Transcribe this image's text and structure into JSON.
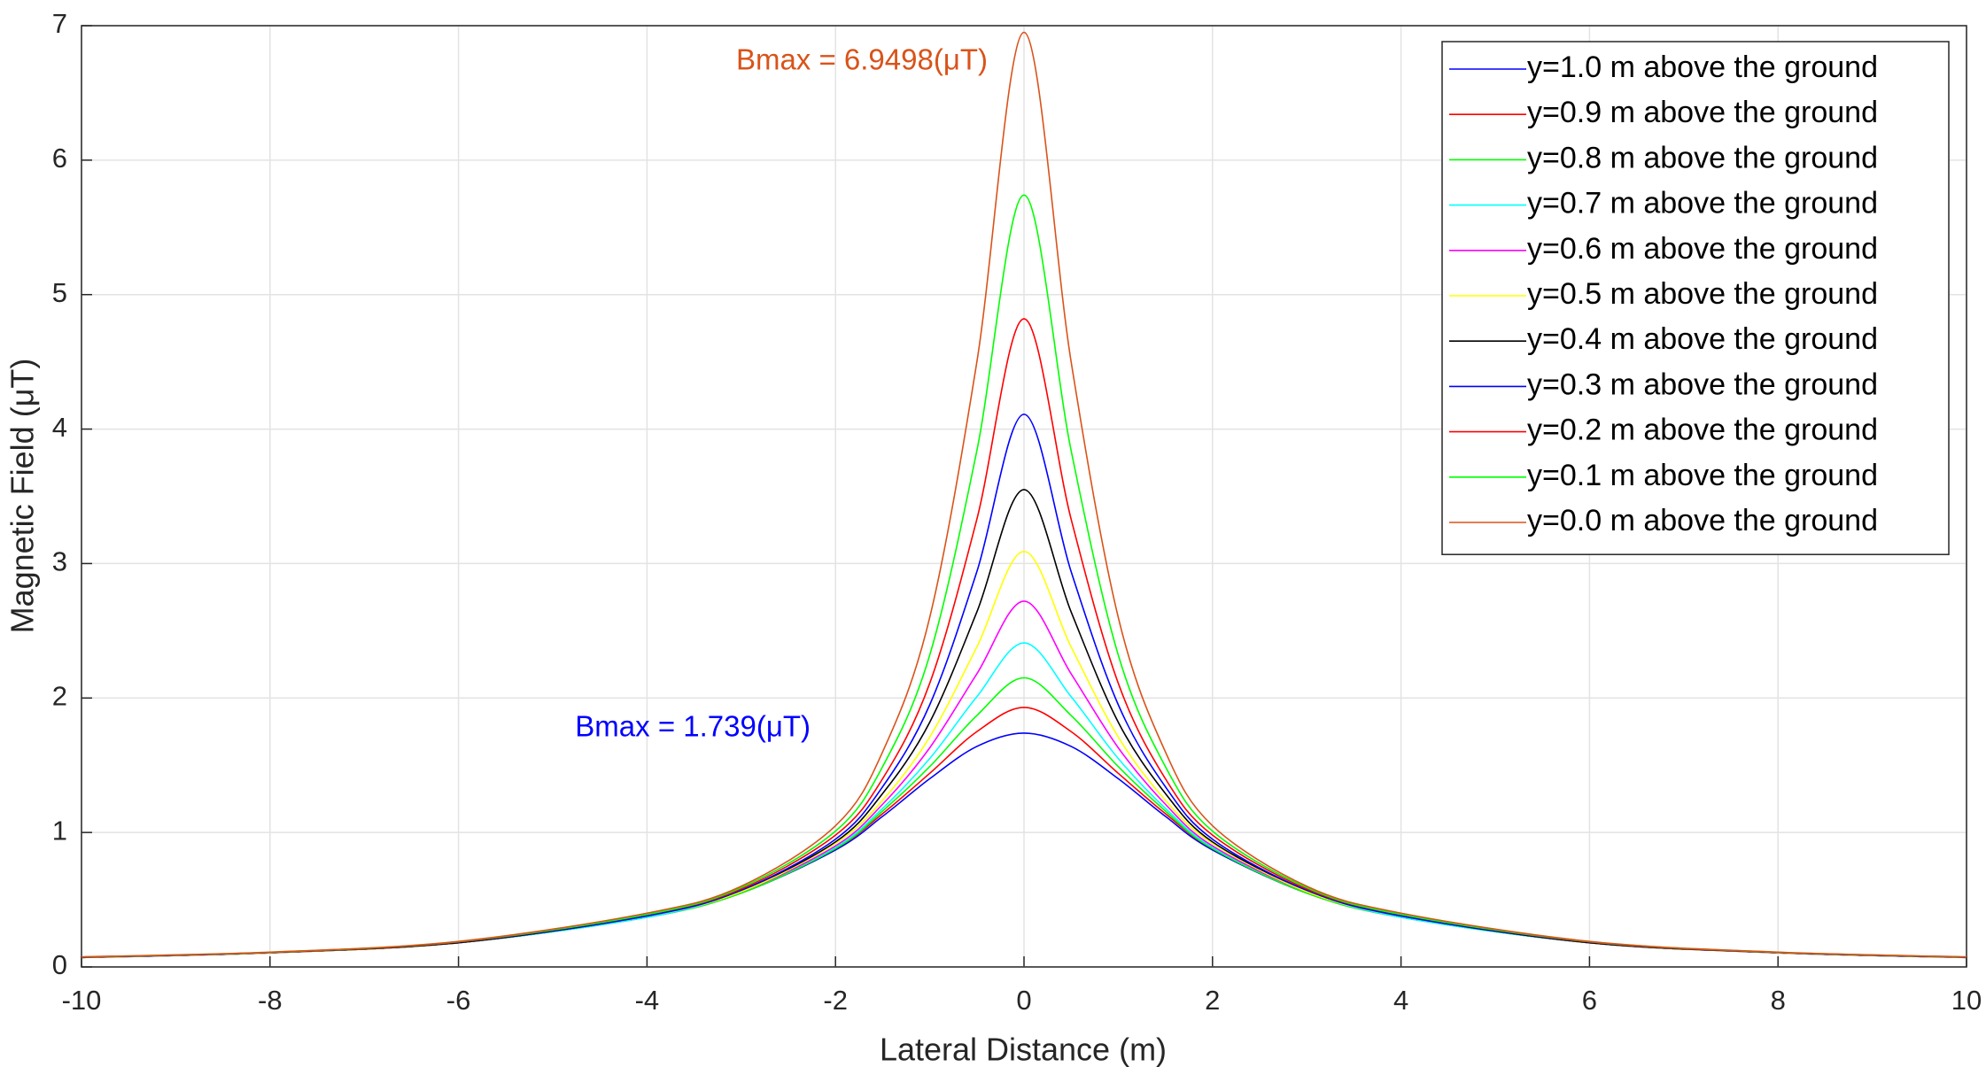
{
  "chart_data": {
    "type": "line",
    "x_label": "Lateral Distance (m)",
    "y_label": "Magnetic Field (μT)",
    "x": [
      -10,
      -8,
      -6,
      -4,
      -3,
      -2,
      -1.5,
      -1,
      -0.5,
      0,
      0.5,
      1,
      1.5,
      2,
      3,
      4,
      6,
      8,
      10
    ],
    "xlim": [
      -10,
      10
    ],
    "xticks": [
      -10,
      -8,
      -6,
      -4,
      -2,
      0,
      2,
      4,
      6,
      8,
      10
    ],
    "ylim": [
      0,
      7
    ],
    "yticks": [
      0,
      1,
      2,
      3,
      4,
      5,
      6,
      7
    ],
    "grid": true,
    "legend": "top-right",
    "annotations": [
      {
        "text": "Bmax = 6.9498(μT)",
        "color": "#d95319"
      },
      {
        "text": "Bmax = 1.739(μT)",
        "color": "#0000ff"
      }
    ],
    "series": [
      {
        "name": "y=1.0 m above the ground",
        "color": "#0000ff",
        "values": [
          0.07,
          0.105,
          0.18,
          0.37,
          0.55,
          0.87,
          1.12,
          1.4,
          1.64,
          1.739,
          1.64,
          1.4,
          1.12,
          0.87,
          0.55,
          0.37,
          0.18,
          0.105,
          0.07
        ]
      },
      {
        "name": "y=0.9 m above the ground",
        "color": "#ff0000",
        "values": [
          0.07,
          0.105,
          0.18,
          0.37,
          0.55,
          0.88,
          1.14,
          1.44,
          1.75,
          1.93,
          1.75,
          1.44,
          1.14,
          0.88,
          0.55,
          0.37,
          0.18,
          0.105,
          0.07
        ]
      },
      {
        "name": "y=0.8 m above the ground",
        "color": "#00ff00",
        "values": [
          0.07,
          0.105,
          0.18,
          0.37,
          0.55,
          0.88,
          1.16,
          1.49,
          1.87,
          2.15,
          1.87,
          1.49,
          1.16,
          0.88,
          0.55,
          0.37,
          0.18,
          0.105,
          0.07
        ]
      },
      {
        "name": "y=0.7 m above the ground",
        "color": "#00ffff",
        "values": [
          0.071,
          0.106,
          0.18,
          0.37,
          0.56,
          0.89,
          1.18,
          1.55,
          2.01,
          2.41,
          2.01,
          1.55,
          1.18,
          0.89,
          0.56,
          0.37,
          0.18,
          0.106,
          0.071
        ]
      },
      {
        "name": "y=0.6 m above the ground",
        "color": "#ff00ff",
        "values": [
          0.071,
          0.106,
          0.18,
          0.38,
          0.56,
          0.9,
          1.21,
          1.63,
          2.18,
          2.72,
          2.18,
          1.63,
          1.21,
          0.9,
          0.56,
          0.38,
          0.18,
          0.106,
          0.071
        ]
      },
      {
        "name": "y=0.5 m above the ground",
        "color": "#ffff00",
        "values": [
          0.071,
          0.106,
          0.18,
          0.38,
          0.56,
          0.92,
          1.24,
          1.71,
          2.38,
          3.09,
          2.38,
          1.71,
          1.24,
          0.92,
          0.56,
          0.38,
          0.18,
          0.106,
          0.071
        ]
      },
      {
        "name": "y=0.4 m above the ground",
        "color": "#000000",
        "values": [
          0.072,
          0.107,
          0.18,
          0.38,
          0.57,
          0.93,
          1.29,
          1.82,
          2.64,
          3.55,
          2.64,
          1.82,
          1.29,
          0.93,
          0.57,
          0.38,
          0.18,
          0.107,
          0.072
        ]
      },
      {
        "name": "y=0.3 m above the ground",
        "color": "#0000ff",
        "values": [
          0.072,
          0.107,
          0.185,
          0.38,
          0.57,
          0.95,
          1.34,
          1.95,
          2.94,
          4.11,
          2.94,
          1.95,
          1.34,
          0.95,
          0.57,
          0.38,
          0.185,
          0.107,
          0.072
        ]
      },
      {
        "name": "y=0.2 m above the ground",
        "color": "#ff0000",
        "values": [
          0.073,
          0.108,
          0.186,
          0.39,
          0.58,
          0.98,
          1.4,
          2.11,
          3.33,
          4.82,
          3.33,
          2.11,
          1.4,
          0.98,
          0.58,
          0.39,
          0.186,
          0.108,
          0.073
        ]
      },
      {
        "name": "y=0.1 m above the ground",
        "color": "#00ff00",
        "values": [
          0.074,
          0.109,
          0.188,
          0.39,
          0.59,
          1.01,
          1.49,
          2.32,
          3.84,
          5.74,
          3.84,
          2.32,
          1.49,
          1.01,
          0.59,
          0.39,
          0.188,
          0.109,
          0.074
        ]
      },
      {
        "name": "y=0.0 m above the ground",
        "color": "#d95319",
        "values": [
          0.075,
          0.11,
          0.19,
          0.4,
          0.6,
          1.05,
          1.6,
          2.6,
          4.5,
          6.95,
          4.5,
          2.6,
          1.6,
          1.05,
          0.6,
          0.4,
          0.19,
          0.11,
          0.075
        ]
      }
    ]
  }
}
